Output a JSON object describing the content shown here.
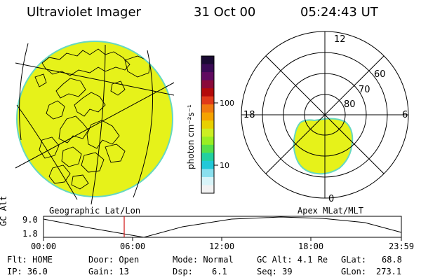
{
  "header": {
    "instrument": "Ultraviolet Imager",
    "date": "31 Oct 00",
    "time": "05:24:43 UT"
  },
  "colorbar": {
    "label": "photon cm⁻²s⁻¹",
    "ticks": [
      "100",
      "10"
    ],
    "colors": [
      "#1a0a33",
      "#3a0a55",
      "#600a60",
      "#8a0a3a",
      "#b30a0a",
      "#e03a1a",
      "#f07a10",
      "#f5a300",
      "#e8d000",
      "#ccee22",
      "#99ee22",
      "#55e04a",
      "#22d0a0",
      "#22c8d8",
      "#8ae0ee",
      "#d8f4f8",
      "#f2f2f2"
    ]
  },
  "geo_panel": {
    "label": "Geographic Lat/Lon",
    "fill_color": "#e6f21a"
  },
  "polar_panel": {
    "label": "Apex MLat/MLT",
    "mlt_labels": {
      "top": "12",
      "left": "18",
      "right": "6",
      "bottom": "0"
    },
    "lat_labels": [
      "60",
      "70",
      "80"
    ],
    "fill_color": "#e6f21a"
  },
  "timeline": {
    "ylabel": "GC Alt",
    "ymax": "9.0",
    "ymin": "1.8",
    "xticks": [
      "00:00",
      "06:00",
      "12:00",
      "18:00",
      "23:59"
    ],
    "current_hours": 5.41
  },
  "status": {
    "flt_label": "Flt: HOME",
    "ip_label": "IP: 36.0",
    "door_label": "Door: Open",
    "gain_label": "Gain: 13",
    "mode_label": "Mode: Normal",
    "dsp_label": "Dsp:",
    "dsp_value": "6.1",
    "gcalt_label": "GC Alt: 4.1 Re",
    "seq_label": "Seq: 39",
    "glat_label": "GLat:",
    "glat_value": "68.8",
    "glon_label": "GLon:",
    "glon_value": "273.1"
  }
}
